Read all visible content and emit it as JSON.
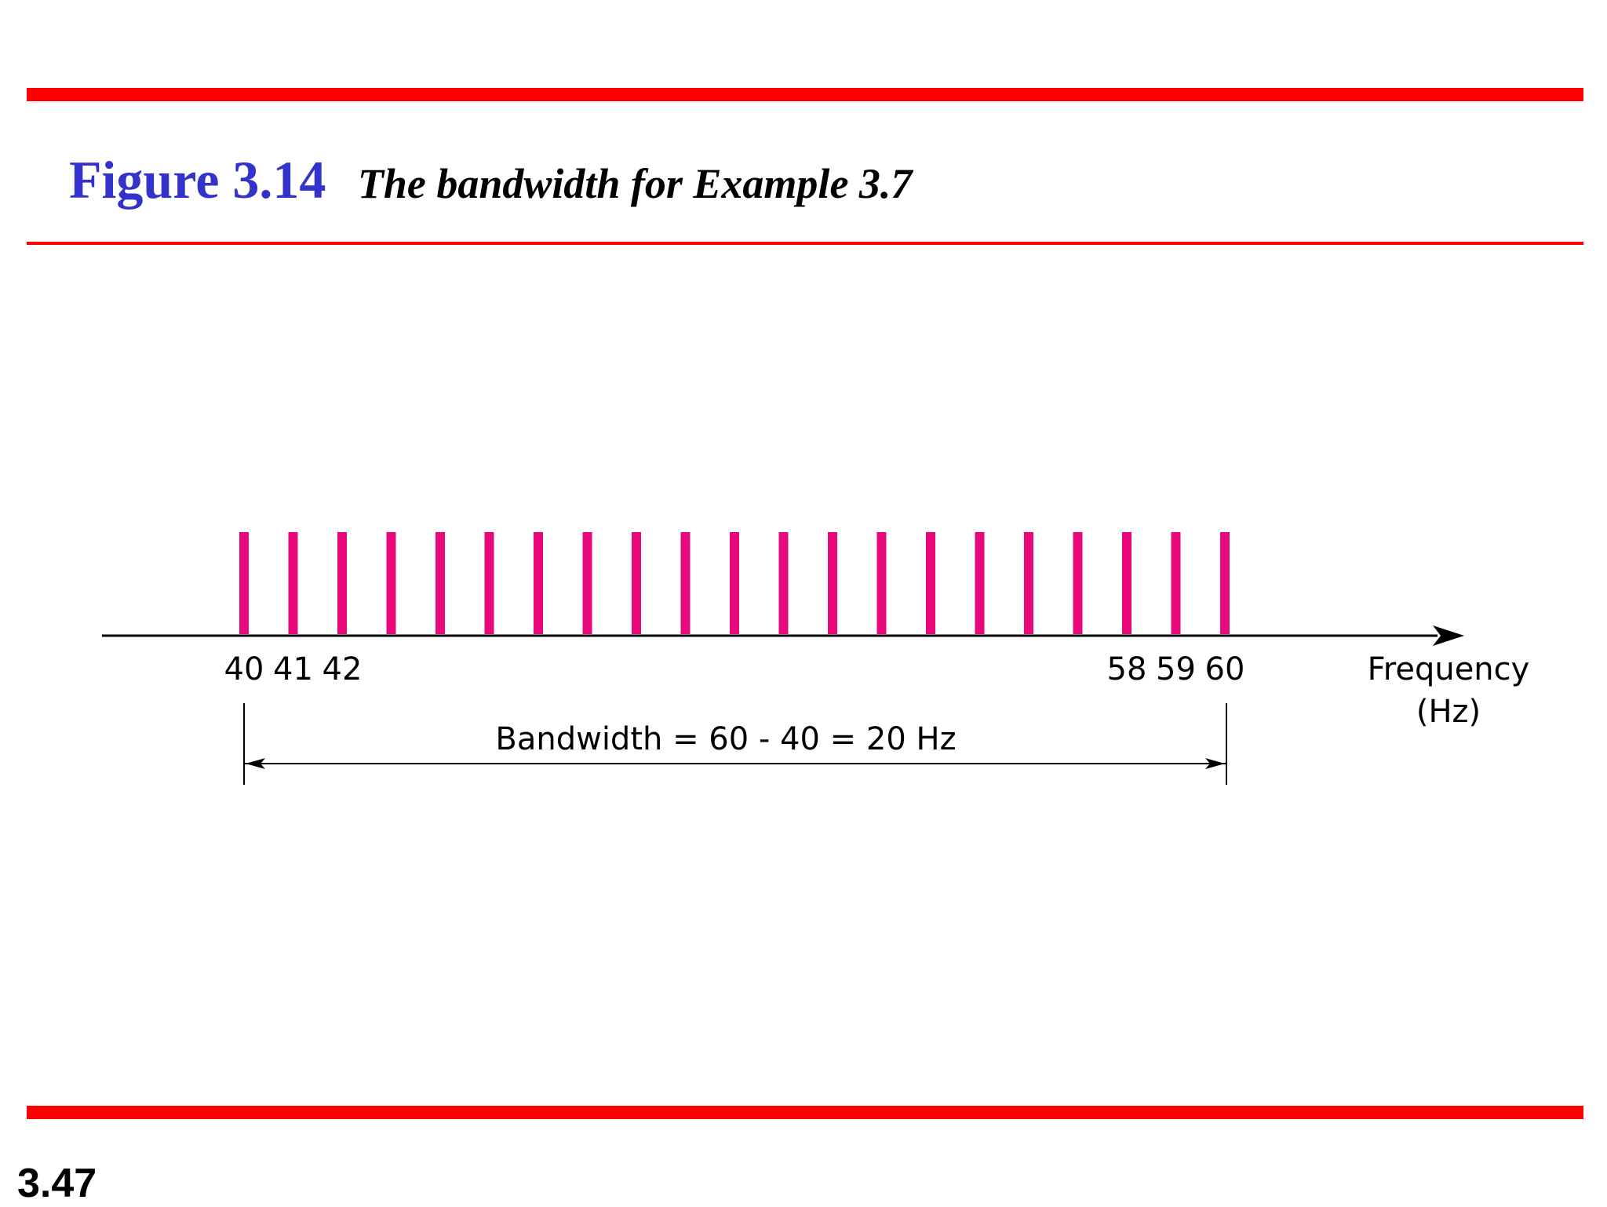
{
  "figure": {
    "number": "Figure 3.14",
    "caption": "The bandwidth for Example 3.7"
  },
  "diagram": {
    "frequencies_hz": [
      40,
      41,
      42,
      43,
      44,
      45,
      46,
      47,
      48,
      49,
      50,
      51,
      52,
      53,
      54,
      55,
      56,
      57,
      58,
      59,
      60
    ],
    "tick_labels": [
      "40",
      "41",
      "42",
      "58",
      "59",
      "60"
    ],
    "axis_label_line1": "Frequency",
    "axis_label_line2": "(Hz)",
    "bandwidth_label": "Bandwidth = 60 - 40 = 20 Hz",
    "line_color": "#e8087c",
    "low_hz": 40,
    "high_hz": 60
  },
  "colors": {
    "rule": "#ff0000",
    "figure_number": "#3333cc"
  },
  "slide_number": "3.47"
}
